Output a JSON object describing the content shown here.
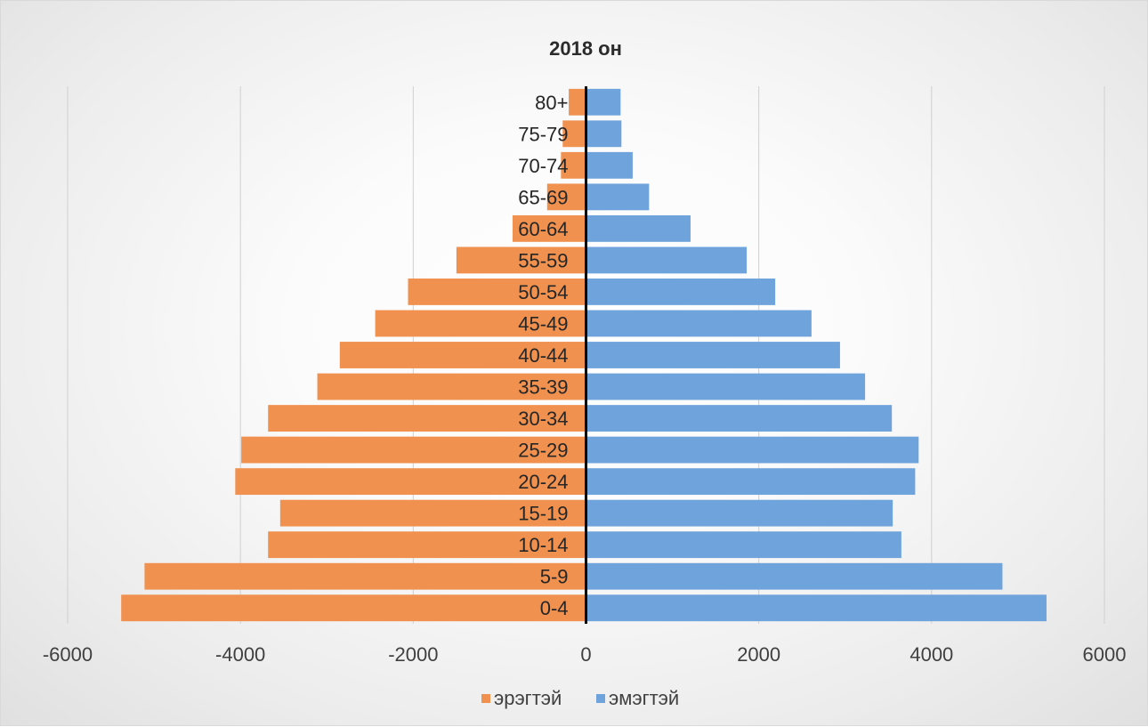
{
  "chart_data": {
    "type": "bar",
    "orientation": "horizontal",
    "title": "2018 он",
    "categories": [
      "0-4",
      "5-9",
      "10-14",
      "15-19",
      "20-24",
      "25-29",
      "30-34",
      "35-39",
      "40-44",
      "45-49",
      "50-54",
      "55-59",
      "60-64",
      "65-69",
      "70-74",
      "75-79",
      "80+"
    ],
    "series": [
      {
        "name": "эрэгтэй",
        "color": "#f0914f",
        "values": [
          -5380,
          -5110,
          -3680,
          -3540,
          -4060,
          -3990,
          -3680,
          -3110,
          -2850,
          -2440,
          -2060,
          -1500,
          -850,
          -450,
          -290,
          -270,
          -200
        ]
      },
      {
        "name": "эмэгтэй",
        "color": "#6fa3dc",
        "values": [
          5330,
          4820,
          3650,
          3550,
          3810,
          3850,
          3540,
          3230,
          2940,
          2610,
          2190,
          1860,
          1210,
          730,
          540,
          410,
          400
        ]
      }
    ],
    "xlim": [
      -6000,
      6000
    ],
    "x_ticks": [
      -6000,
      -4000,
      -2000,
      0,
      2000,
      4000,
      6000
    ],
    "x_tick_labels": [
      "-6000",
      "-4000",
      "-2000",
      "0",
      "2000",
      "4000",
      "6000"
    ],
    "grid": "vertical",
    "legend_position": "bottom"
  }
}
